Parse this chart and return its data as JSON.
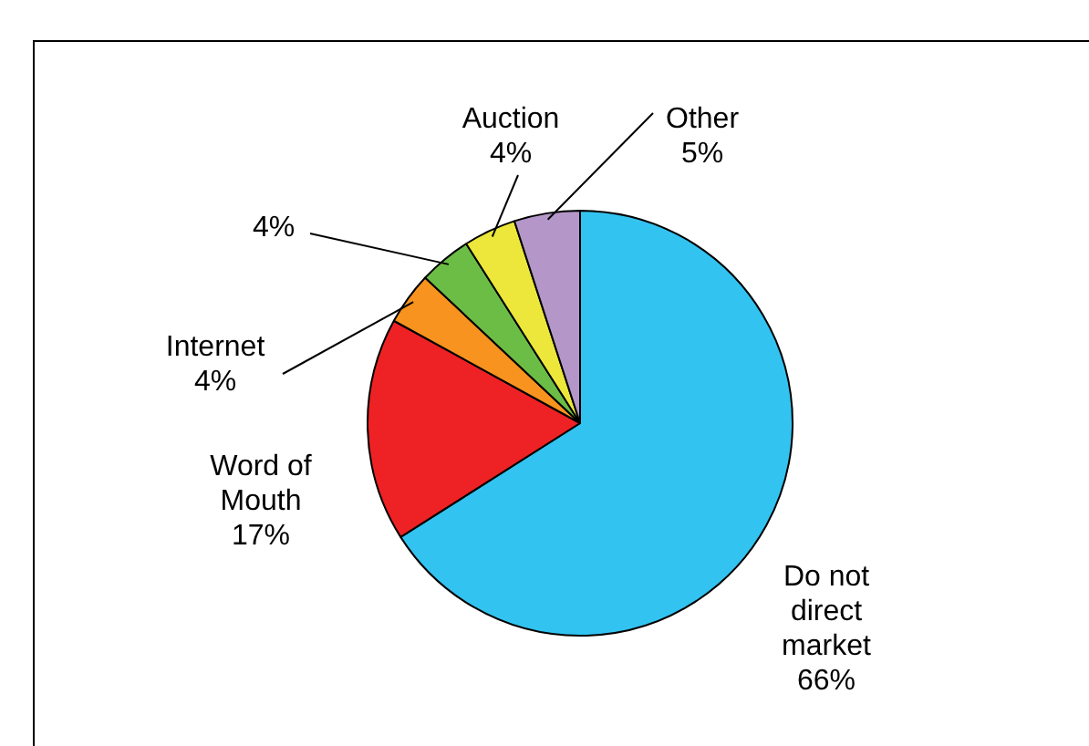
{
  "chart_data": {
    "type": "pie",
    "categories": [
      "Do not direct market",
      "Word of Mouth",
      "Internet",
      null,
      "Auction",
      "Other"
    ],
    "values": [
      66,
      17,
      4,
      4,
      4,
      5
    ],
    "value_labels": [
      "66%",
      "17%",
      "4%",
      "4%",
      "4%",
      "5%"
    ],
    "colors": [
      "#33c3f0",
      "#ee2224",
      "#f7931e",
      "#6cbd45",
      "#ede73c",
      "#b497c8"
    ],
    "legend": false
  }
}
